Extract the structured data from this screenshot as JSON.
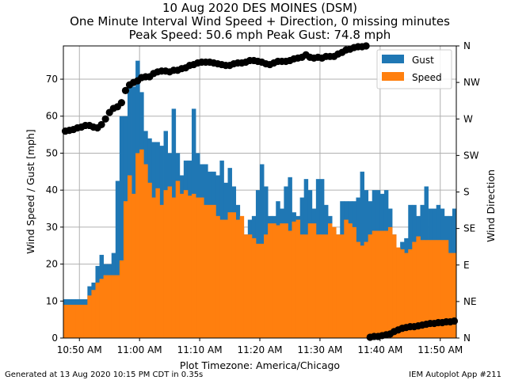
{
  "chart_data": {
    "type": "bar",
    "title_lines": [
      "10 Aug 2020 DES MOINES (DSM)",
      "One Minute Interval Wind Speed + Direction, 0 missing minutes",
      "Peak Speed: 50.6 mph Peak Gust: 74.8 mph"
    ],
    "xlabel": "Plot Timezone: America/Chicago",
    "ylabel": "Wind Speed / Gust [mph]",
    "y2label": "Wind Direction",
    "ylim": [
      0,
      79
    ],
    "y_ticks": [
      0,
      10,
      20,
      30,
      40,
      50,
      60,
      70
    ],
    "y2_ticks": [
      "N",
      "NE",
      "E",
      "SE",
      "S",
      "SW",
      "W",
      "NW",
      "N"
    ],
    "x_ticks": [
      "10:50 AM",
      "11:00 AM",
      "11:10 AM",
      "11:20 AM",
      "11:30 AM",
      "11:40 AM",
      "11:50 AM"
    ],
    "x_start_minute": 0,
    "legend": [
      "Gust",
      "Speed"
    ],
    "legend_position": "top-right",
    "grid": true,
    "colors": {
      "gust": "#1f77b4",
      "speed": "#ff7f0e",
      "direction": "#000000"
    },
    "series": [
      {
        "name": "Speed",
        "values": [
          9,
          9,
          9,
          9,
          9,
          9,
          11.5,
          13,
          15,
          16,
          17,
          17,
          17,
          17,
          21,
          37,
          44,
          39,
          50,
          51,
          47,
          42,
          38,
          40.5,
          36,
          40,
          41,
          38,
          42.5,
          39,
          40,
          38.5,
          39,
          38,
          38,
          36,
          36,
          36,
          33,
          32,
          32,
          34,
          34,
          32,
          33,
          28,
          28,
          27,
          25.5,
          25.5,
          28,
          31,
          31,
          30.5,
          31,
          31,
          29,
          31.5,
          32,
          28,
          28,
          31,
          31,
          28,
          28,
          28,
          31,
          30,
          28,
          28,
          32,
          31,
          30,
          26,
          25,
          26,
          28,
          29,
          29,
          29,
          29,
          30,
          28,
          24.5,
          24,
          23,
          24,
          26,
          27.5,
          26.5,
          26.5,
          26.5,
          26.5,
          26.5,
          26.5,
          26.5,
          23,
          23
        ]
      },
      {
        "name": "Gust",
        "values": [
          10.5,
          10.5,
          10.5,
          10.5,
          10.5,
          10.5,
          14,
          15,
          19.5,
          22.5,
          20,
          20,
          23,
          42.5,
          60,
          60,
          68,
          68,
          75,
          66.5,
          56,
          54,
          53,
          53,
          52,
          56,
          50,
          62,
          50,
          44,
          48,
          48,
          62,
          50,
          47,
          47,
          45,
          45,
          44,
          48,
          42,
          46,
          41,
          36,
          30,
          28,
          32,
          33,
          40,
          47,
          41,
          33,
          33,
          37,
          35,
          41,
          43.5,
          34,
          33,
          38,
          43,
          40,
          35,
          43,
          43,
          36,
          33,
          29,
          28,
          37,
          37,
          37,
          37,
          38,
          45,
          40,
          37,
          40,
          40,
          39,
          40,
          35,
          28,
          22,
          26,
          27,
          36,
          36,
          33,
          36,
          41,
          35,
          35,
          36,
          35,
          33,
          33,
          35
        ]
      },
      {
        "name": "Direction",
        "unit": "degrees",
        "minutes": [
          0,
          1,
          2,
          3,
          4,
          5,
          6,
          7,
          8,
          9,
          10,
          11,
          12,
          13,
          14,
          15,
          16,
          17,
          18,
          19,
          20,
          21,
          22,
          23,
          24,
          25,
          26,
          27,
          28,
          29,
          30,
          31,
          32,
          33,
          34,
          35,
          36,
          37,
          38,
          39,
          40,
          41,
          42,
          43,
          44,
          45,
          46,
          47,
          48,
          49,
          50,
          51,
          52,
          53,
          54,
          55,
          56,
          57,
          58,
          59,
          60,
          61,
          62,
          63,
          64,
          65,
          66,
          67,
          68,
          69,
          70,
          71,
          72,
          73,
          74,
          75,
          76,
          77,
          78,
          79,
          80,
          81,
          82,
          83,
          84,
          85,
          86,
          87,
          88,
          89,
          90,
          91,
          92,
          93,
          94,
          95,
          96,
          97
        ],
        "values": [
          255,
          256,
          257,
          259,
          260,
          262,
          262,
          260,
          259,
          263,
          270,
          278,
          283,
          285,
          290,
          305,
          312,
          315,
          317,
          321,
          322,
          322,
          326,
          328,
          329,
          329,
          328,
          330,
          330,
          332,
          333,
          336,
          337,
          339,
          340,
          340,
          340,
          339,
          338,
          337,
          336,
          336,
          338,
          339,
          339,
          340,
          342,
          342,
          341,
          340,
          338,
          337,
          339,
          341,
          341,
          341,
          342,
          344,
          345,
          346,
          349,
          346,
          345,
          346,
          345,
          347,
          347,
          347,
          350,
          352,
          355,
          356,
          358,
          359,
          359,
          360,
          1,
          2,
          2,
          3,
          4,
          5,
          8,
          10,
          12,
          13,
          14,
          14,
          15,
          16,
          17,
          18,
          18,
          19,
          19,
          20,
          20,
          21
        ]
      }
    ]
  },
  "footer": {
    "left": "Generated at 13 Aug 2020 10:15 PM CDT in 0.35s",
    "right": "IEM Autoplot App #211"
  }
}
